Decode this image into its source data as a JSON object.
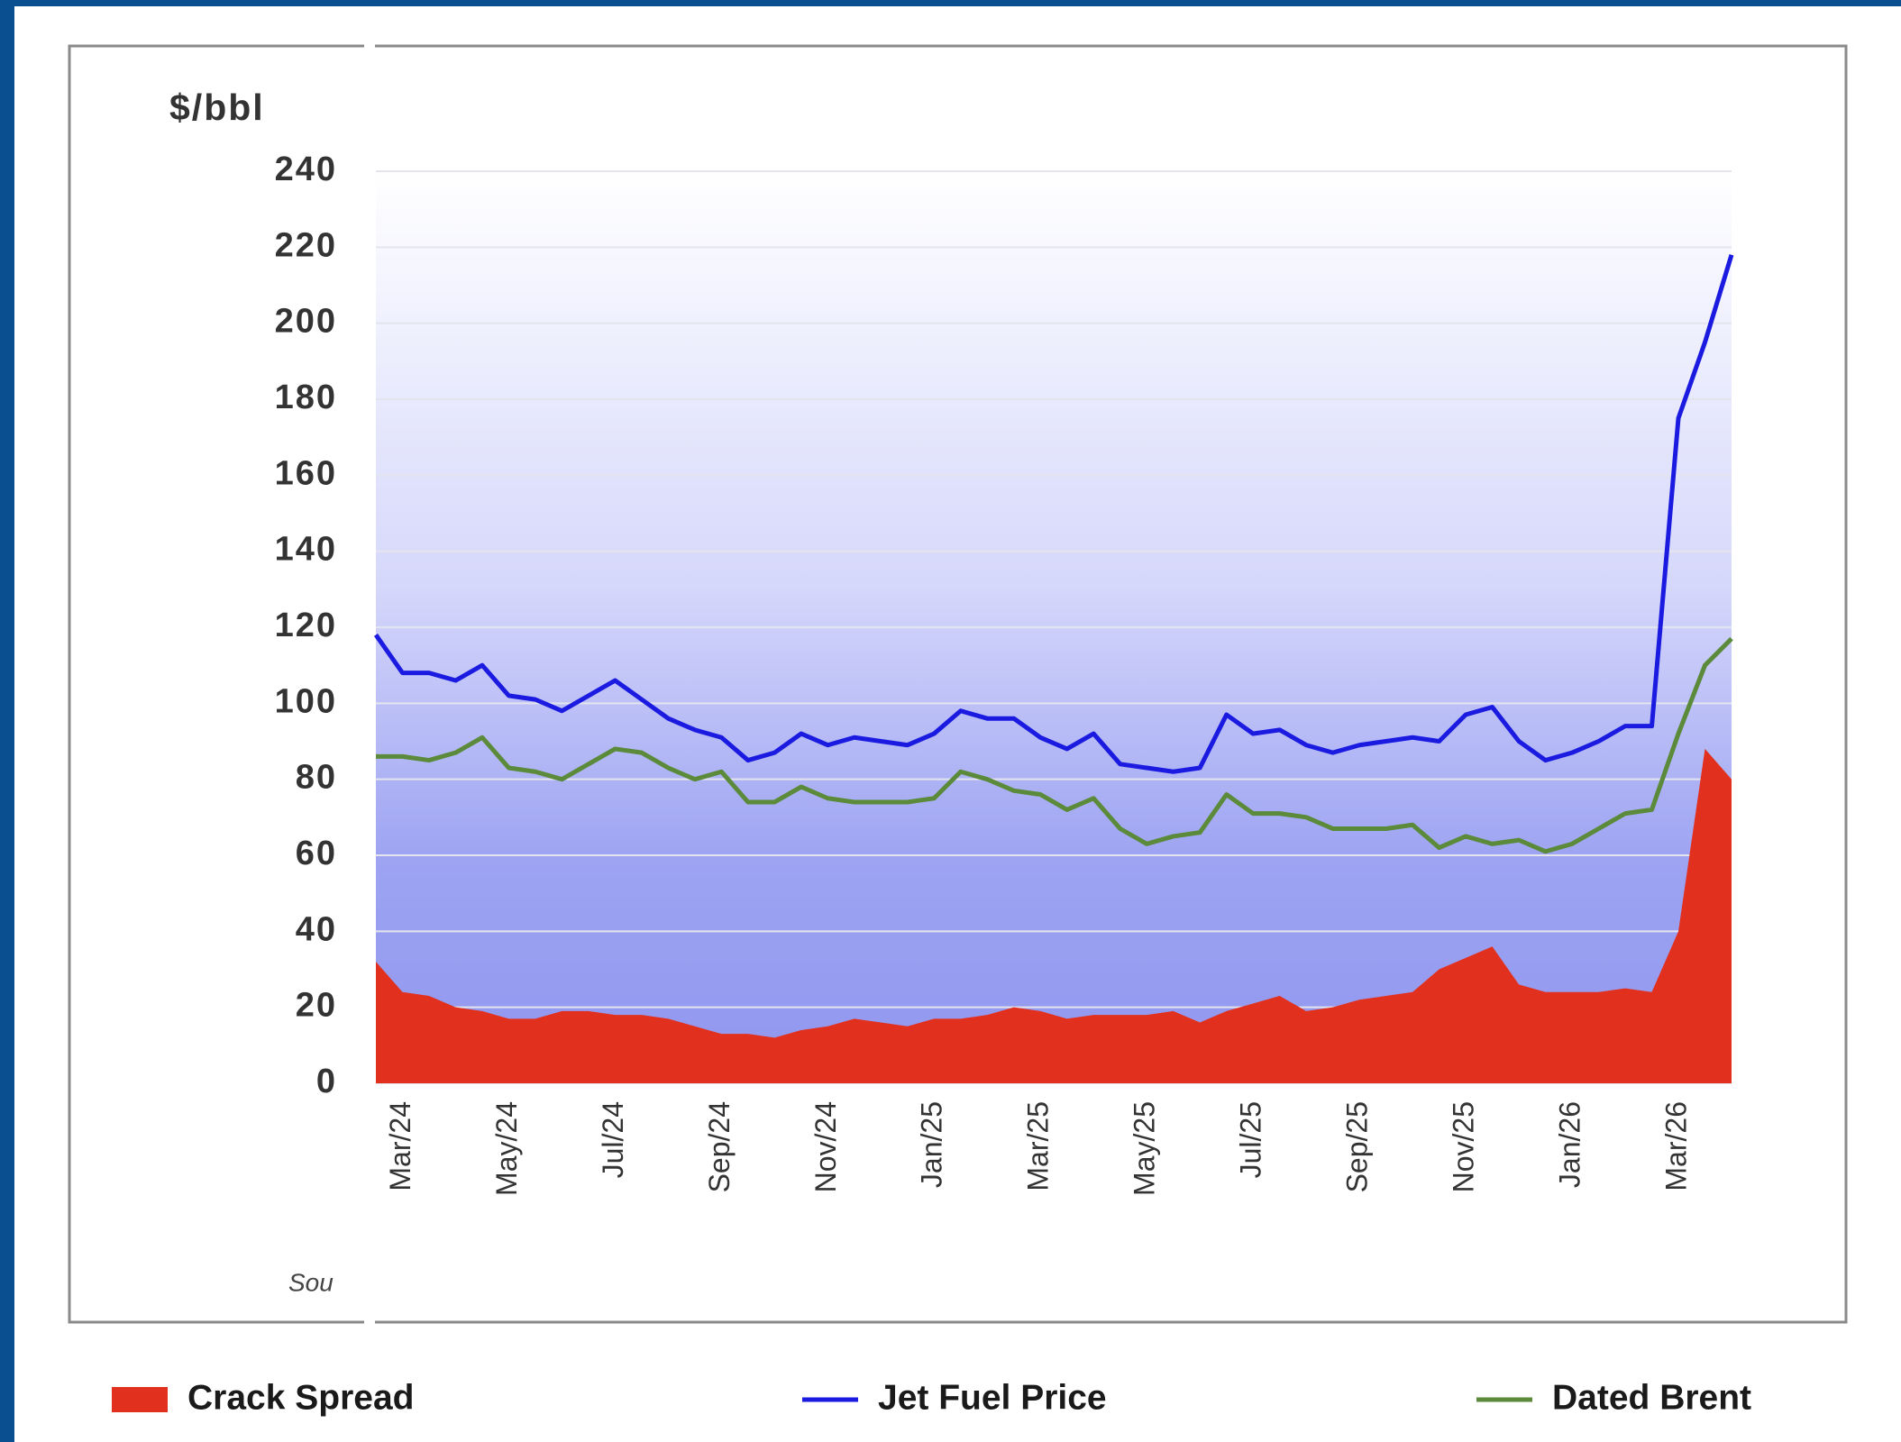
{
  "chart_data": {
    "type": "line",
    "ylabel": "$/bbl",
    "source": "Sou",
    "categories": [
      null,
      "Mar/24",
      null,
      null,
      null,
      "May/24",
      null,
      null,
      null,
      "Jul/24",
      null,
      null,
      null,
      "Sep/24",
      null,
      null,
      null,
      "Nov/24",
      null,
      null,
      null,
      "Jan/25",
      null,
      null,
      null,
      "Mar/25",
      null,
      null,
      null,
      "May/25",
      null,
      null,
      null,
      "Jul/25",
      null,
      null,
      null,
      "Sep/25",
      null,
      null,
      null,
      "Nov/25",
      null,
      null,
      null,
      "Jan/26",
      null,
      null,
      null,
      "Mar/26",
      null,
      null
    ],
    "series": [
      {
        "name": "Crack Spread",
        "type": "area",
        "color": "#e2301f",
        "values": [
          32,
          24,
          23,
          20,
          19,
          17,
          17,
          19,
          19,
          18,
          18,
          17,
          15,
          13,
          13,
          12,
          14,
          15,
          17,
          16,
          15,
          17,
          17,
          18,
          20,
          19,
          17,
          18,
          18,
          18,
          19,
          16,
          19,
          21,
          23,
          19,
          20,
          22,
          23,
          24,
          30,
          33,
          36,
          26,
          24,
          24,
          24,
          25,
          24,
          40,
          88,
          80
        ]
      },
      {
        "name": "Jet Fuel Price",
        "type": "line",
        "color": "#1a1ae0",
        "values": [
          118,
          108,
          108,
          106,
          110,
          102,
          101,
          98,
          102,
          106,
          101,
          96,
          93,
          91,
          85,
          87,
          92,
          89,
          91,
          90,
          89,
          92,
          98,
          96,
          96,
          91,
          88,
          92,
          84,
          83,
          82,
          83,
          97,
          92,
          93,
          89,
          87,
          89,
          90,
          91,
          90,
          97,
          99,
          90,
          85,
          87,
          90,
          94,
          94,
          175,
          195,
          218
        ]
      },
      {
        "name": "Dated Brent",
        "type": "line",
        "color": "#5a8a3a",
        "values": [
          86,
          86,
          85,
          87,
          91,
          83,
          82,
          80,
          84,
          88,
          87,
          83,
          80,
          82,
          74,
          74,
          78,
          75,
          74,
          74,
          74,
          75,
          82,
          80,
          77,
          76,
          72,
          75,
          67,
          63,
          65,
          66,
          76,
          71,
          71,
          70,
          67,
          67,
          67,
          68,
          62,
          65,
          63,
          64,
          61,
          63,
          67,
          71,
          72,
          92,
          110,
          117
        ]
      }
    ],
    "ylim": [
      0,
      240
    ],
    "yticks": [
      0,
      20,
      40,
      60,
      80,
      100,
      120,
      140,
      160,
      180,
      200,
      220,
      240
    ],
    "grid": true
  }
}
